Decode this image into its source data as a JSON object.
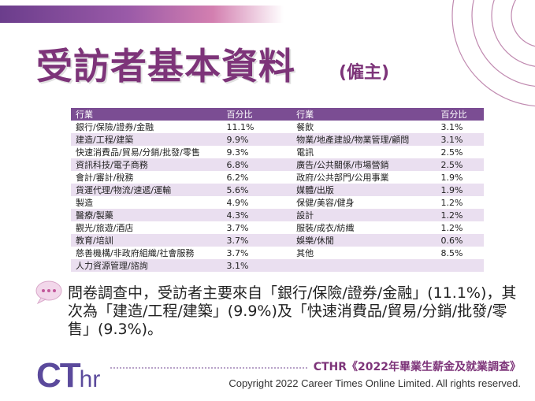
{
  "title": "受訪者基本資料",
  "subtitle": "(僱主)",
  "table": {
    "headers": [
      "行業",
      "百分比",
      "行業",
      "百分比"
    ],
    "rows": [
      [
        "銀行/保險/證券/金融",
        "11.1%",
        "餐飲",
        "3.1%"
      ],
      [
        "建造/工程/建築",
        "9.9%",
        "物業/地產建設/物業管理/顧問",
        "3.1%"
      ],
      [
        "快速消費品/貿易/分銷/批發/零售",
        "9.3%",
        "電訊",
        "2.5%"
      ],
      [
        "資訊科技/電子商務",
        "6.8%",
        "廣告/公共關係/市場營銷",
        "2.5%"
      ],
      [
        "會計/審計/稅務",
        "6.2%",
        "政府/公共部門/公用事業",
        "1.9%"
      ],
      [
        "貨運代理/物流/速遞/運輸",
        "5.6%",
        "媒體/出版",
        "1.9%"
      ],
      [
        "製造",
        "4.9%",
        "保健/美容/健身",
        "1.2%"
      ],
      [
        "醫療/製藥",
        "4.3%",
        "設計",
        "1.2%"
      ],
      [
        "觀光/旅遊/酒店",
        "3.7%",
        "服裝/成衣/紡織",
        "1.2%"
      ],
      [
        "教育/培訓",
        "3.7%",
        "娛樂/休閒",
        "0.6%"
      ],
      [
        "慈善機構/非政府組織/社會服務",
        "3.7%",
        "其他",
        "8.5%"
      ],
      [
        "人力資源管理/諮詢",
        "3.1%",
        "",
        ""
      ]
    ]
  },
  "summary": "問卷調查中，受訪者主要來自「銀行/保險/證券/金融」(11.1%)，其次為「建造/工程/建築」(9.9%)及「快速消費品/貿易/分銷/批發/零售」(9.3%)。",
  "logo": {
    "ct": "CT",
    "hr": "hr"
  },
  "report_title": "CTHR《2022年畢業生薪金及就業調查》",
  "copyright": "Copyright 2022 Career Times Online Limited. All rights reserved.",
  "colors": {
    "accent": "#7d3479",
    "header_bg": "#7b4d93",
    "row_alt": "#eadff0",
    "logo": "#5b4a9c"
  }
}
